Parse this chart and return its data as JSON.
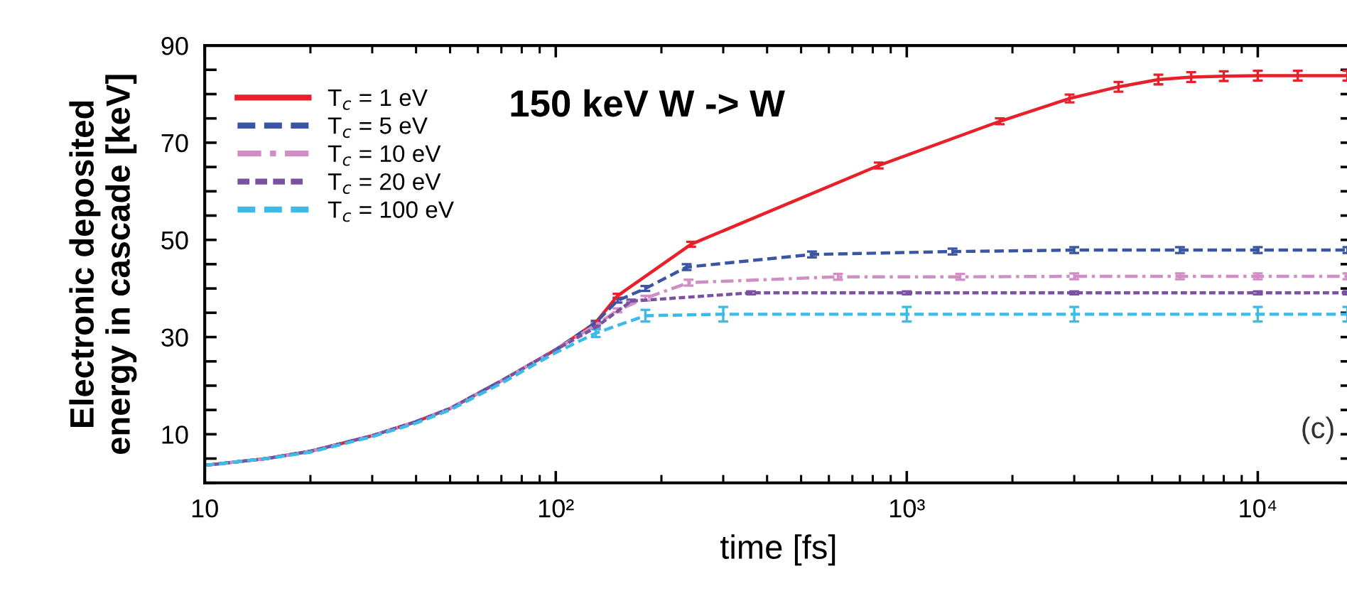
{
  "chart_data": {
    "type": "line",
    "title": "150 keV W -> W",
    "xlabel": "time [fs]",
    "ylabel": "Electronic deposited\nenergy in cascade [keV]",
    "log": "x",
    "xlim": [
      10,
      18600
    ],
    "ylim": [
      0,
      90
    ],
    "xticks": [
      {
        "value": 10,
        "label": "10"
      },
      {
        "value": 100,
        "label": "10²"
      },
      {
        "value": 1000,
        "label": "10³"
      },
      {
        "value": 10000,
        "label": "10⁴"
      }
    ],
    "yticks": [
      {
        "value": 0,
        "label": null
      },
      {
        "value": 5,
        "label": null
      },
      10,
      {
        "value": 15,
        "label": null
      },
      {
        "value": 20,
        "label": null
      },
      {
        "value": 25,
        "label": null
      },
      30,
      {
        "value": 35,
        "label": null
      },
      {
        "value": 40,
        "label": null
      },
      {
        "value": 45,
        "label": null
      },
      50,
      {
        "value": 55,
        "label": null
      },
      {
        "value": 60,
        "label": null
      },
      {
        "value": 65,
        "label": null
      },
      70,
      {
        "value": 75,
        "label": null
      },
      {
        "value": 80,
        "label": null
      },
      {
        "value": 85,
        "label": null
      },
      90
    ],
    "grid": false,
    "legend": "top left",
    "marker": "none",
    "annotations": [
      "(c)"
    ],
    "series": [
      {
        "name": "T$_{c}$ = 1 eV",
        "color": "#e8202a",
        "line_style": "solid",
        "x": [
          10,
          15,
          20,
          30,
          40,
          50,
          70,
          100,
          130,
          150,
          243,
          832,
          1841,
          2910,
          4010,
          5210,
          6460,
          8000,
          10000,
          13000,
          18000
        ],
        "values": [
          3.6,
          5.0,
          6.5,
          9.7,
          12.6,
          15.3,
          21,
          27.4,
          33,
          38.5,
          49.1,
          65.3,
          74.4,
          79.1,
          81.5,
          83,
          83.5,
          83.7,
          83.8,
          83.8,
          83.8
        ],
        "errors": [
          null,
          null,
          null,
          null,
          null,
          null,
          null,
          null,
          0.3,
          0.4,
          0.5,
          0.6,
          0.6,
          0.8,
          1.0,
          1.0,
          1.0,
          1.0,
          1.0,
          1.0,
          1.0
        ]
      },
      {
        "name": "T$_{c}$ = 5 eV",
        "color": "#3a55a4",
        "line_style": "dashed",
        "x": [
          10,
          15,
          20,
          30,
          40,
          50,
          70,
          100,
          130,
          150,
          180,
          236,
          537,
          1350,
          3000,
          6000,
          10000,
          18000
        ],
        "values": [
          3.6,
          5.0,
          6.5,
          9.7,
          12.6,
          15.3,
          21,
          27.4,
          33,
          37.5,
          40,
          44.4,
          47,
          47.6,
          47.9,
          47.9,
          47.9,
          47.9
        ],
        "errors": [
          null,
          null,
          null,
          null,
          null,
          null,
          null,
          null,
          0.3,
          0.4,
          0.5,
          0.6,
          0.6,
          0.6,
          0.6,
          0.6,
          0.6,
          0.6
        ]
      },
      {
        "name": "T$_{c}$ = 10 eV",
        "color": "#d08ec4",
        "line_style": "dashdot",
        "x": [
          10,
          15,
          20,
          30,
          40,
          50,
          70,
          100,
          130,
          150,
          180,
          239,
          637,
          1420,
          3000,
          6000,
          10000,
          18000
        ],
        "values": [
          3.6,
          5.0,
          6.5,
          9.7,
          12.6,
          15.3,
          21,
          27.4,
          32.5,
          35.5,
          38,
          41.2,
          42.4,
          42.4,
          42.5,
          42.5,
          42.5,
          42.5
        ],
        "errors": [
          null,
          null,
          null,
          null,
          null,
          null,
          null,
          null,
          0.3,
          0.4,
          0.5,
          0.6,
          0.6,
          0.6,
          0.6,
          0.6,
          0.6,
          0.6
        ]
      },
      {
        "name": "T$_{c}$ = 20 eV",
        "color": "#7b52a3",
        "line_style": "dotted",
        "x": [
          10,
          15,
          20,
          30,
          40,
          50,
          70,
          100,
          130,
          164,
          360,
          1000,
          3000,
          10000,
          18000
        ],
        "values": [
          3.6,
          5.0,
          6.5,
          9.7,
          12.6,
          15.3,
          21,
          27.4,
          32,
          37.4,
          39.1,
          39.1,
          39.1,
          39.1,
          39.1
        ],
        "errors": [
          null,
          null,
          null,
          null,
          null,
          null,
          null,
          null,
          0.3,
          0.3,
          0.3,
          0.3,
          0.3,
          0.3,
          0.3
        ]
      },
      {
        "name": "T$_{c}$ = 100 eV",
        "color": "#3dbbe8",
        "line_style": "dashed",
        "x": [
          10,
          15,
          20,
          30,
          40,
          50,
          70,
          100,
          130,
          180,
          300,
          1000,
          3000,
          10000,
          18000
        ],
        "values": [
          3.6,
          5.0,
          6.3,
          9.5,
          12.3,
          15.0,
          20.5,
          26.8,
          30.8,
          34.4,
          34.7,
          34.7,
          34.7,
          34.7,
          34.7
        ],
        "errors": [
          null,
          null,
          null,
          null,
          null,
          null,
          null,
          null,
          0.8,
          1.2,
          1.5,
          1.5,
          1.5,
          1.5,
          1.5
        ]
      }
    ]
  }
}
